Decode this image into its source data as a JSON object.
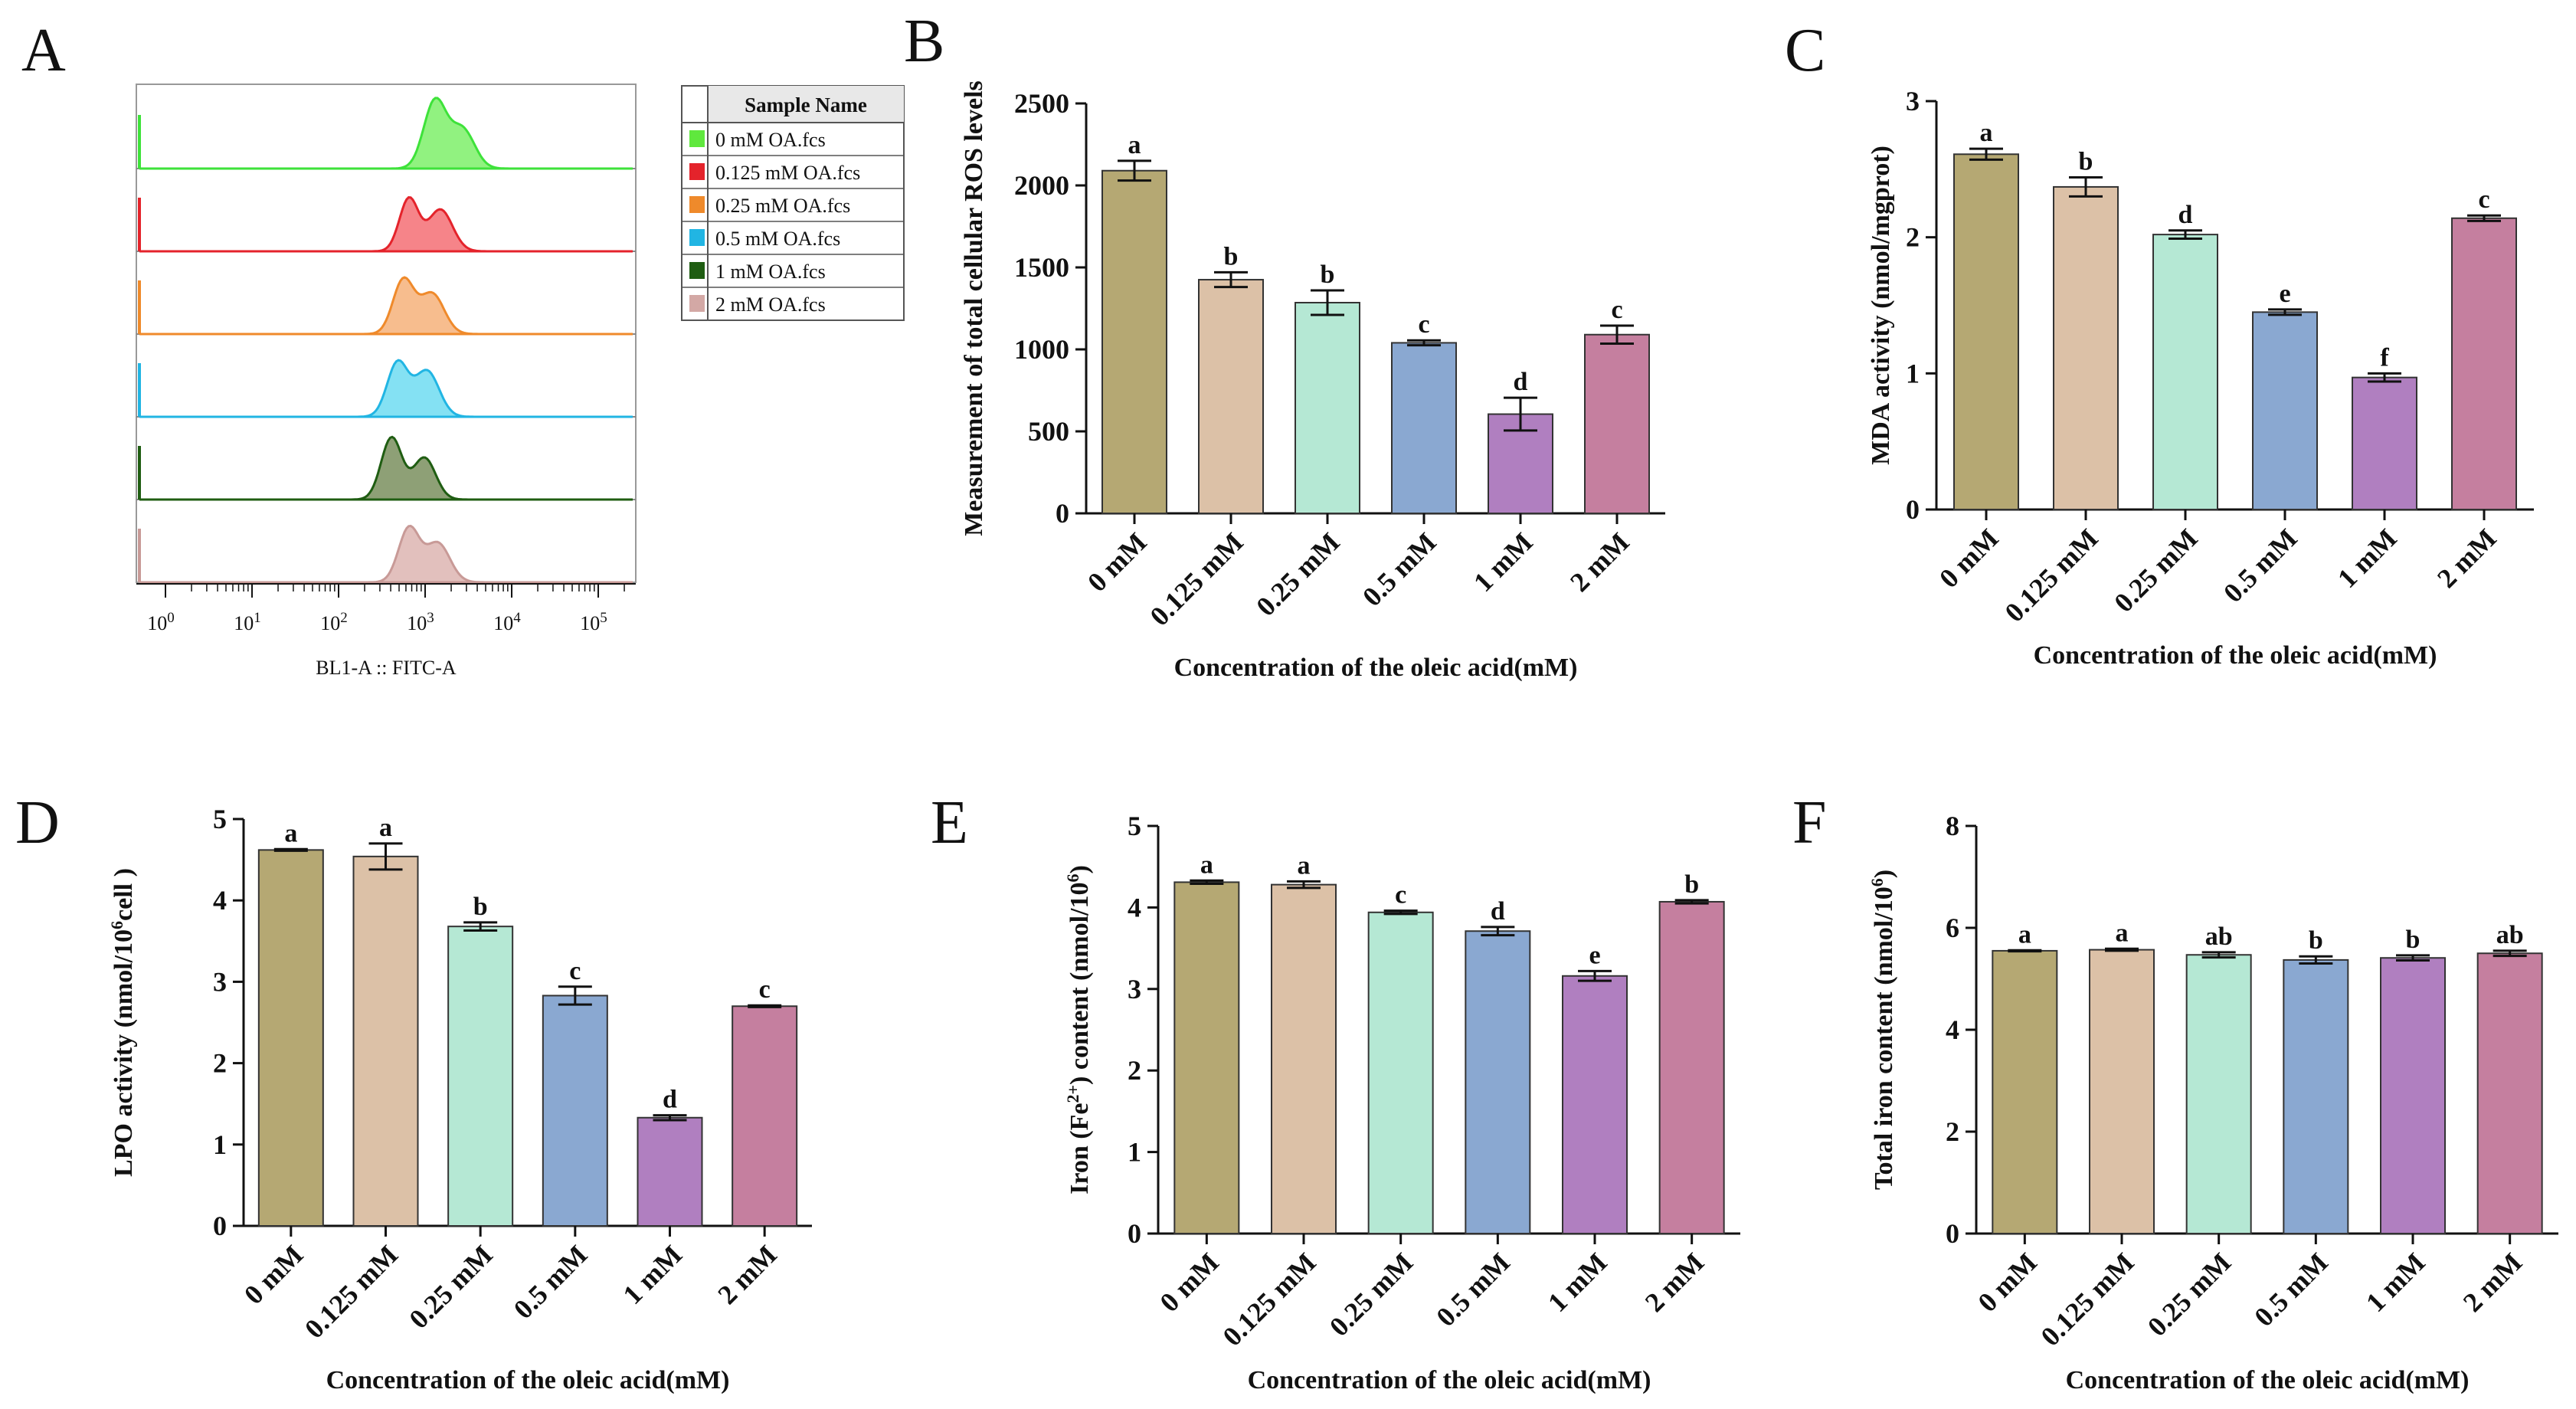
{
  "panels": {
    "A": "A",
    "B": "B",
    "C": "C",
    "D": "D",
    "E": "E",
    "F": "F"
  },
  "colors": {
    "bars": [
      "#b5a873",
      "#dcc1a7",
      "#b5e8d4",
      "#8aa8d1",
      "#b07fc0",
      "#c57f9f"
    ],
    "flow": [
      "#7ef06a",
      "#f46e74",
      "#f6b27a",
      "#6fdcf1",
      "#7a8f5e",
      "#ddb5b2"
    ],
    "flow_lines": [
      "#3ee23a",
      "#e4232b",
      "#ef8a2b",
      "#21b5e3",
      "#1f5d12",
      "#c89a97"
    ],
    "legend_swatch": [
      "#5fe83d",
      "#e4232b",
      "#ef8a2b",
      "#21b5e3",
      "#1f5d12",
      "#d3a8a5"
    ]
  },
  "chart_data": [
    {
      "panel": "A",
      "type": "histogram-overlay",
      "xlabel": "BL1-A :: FITC-A",
      "xscale": "log",
      "xlim": [
        0.5,
        250000
      ],
      "x_tick_labels": [
        {
          "base": "10",
          "exp": "0",
          "value": 1
        },
        {
          "base": "10",
          "exp": "1",
          "value": 10
        },
        {
          "base": "10",
          "exp": "2",
          "value": 100
        },
        {
          "base": "10",
          "exp": "3",
          "value": 1000
        },
        {
          "base": "10",
          "exp": "4",
          "value": 10000
        },
        {
          "base": "10",
          "exp": "5",
          "value": 100000
        }
      ],
      "legend_title": "Sample Name",
      "series": [
        {
          "name": "0 mM OA.fcs",
          "peaks": [
            {
              "x": 1300,
              "h": 1.0,
              "w": 0.13
            },
            {
              "x": 2700,
              "h": 0.58,
              "w": 0.14
            }
          ]
        },
        {
          "name": "0.125 mM OA.fcs",
          "peaks": [
            {
              "x": 650,
              "h": 0.78,
              "w": 0.11
            },
            {
              "x": 1500,
              "h": 0.62,
              "w": 0.14
            }
          ]
        },
        {
          "name": "0.25 mM OA.fcs",
          "peaks": [
            {
              "x": 560,
              "h": 0.8,
              "w": 0.12
            },
            {
              "x": 1200,
              "h": 0.6,
              "w": 0.14
            }
          ]
        },
        {
          "name": "0.5 mM OA.fcs",
          "peaks": [
            {
              "x": 480,
              "h": 0.8,
              "w": 0.12
            },
            {
              "x": 1050,
              "h": 0.68,
              "w": 0.14
            }
          ]
        },
        {
          "name": "1 mM OA.fcs",
          "peaks": [
            {
              "x": 410,
              "h": 0.92,
              "w": 0.12
            },
            {
              "x": 980,
              "h": 0.62,
              "w": 0.13
            }
          ]
        },
        {
          "name": "2 mM OA.fcs",
          "peaks": [
            {
              "x": 650,
              "h": 0.8,
              "w": 0.12
            },
            {
              "x": 1400,
              "h": 0.58,
              "w": 0.14
            }
          ]
        }
      ]
    },
    {
      "panel": "B",
      "type": "bar",
      "categories": [
        "0 mM",
        "0.125 mM",
        "0.25 mM",
        "0.5 mM",
        "1 mM",
        "2 mM"
      ],
      "values": [
        2090,
        1425,
        1285,
        1040,
        605,
        1090
      ],
      "errors": [
        60,
        45,
        75,
        15,
        100,
        55
      ],
      "letters": [
        "a",
        "b",
        "b",
        "c",
        "d",
        "c"
      ],
      "ylabel": "Measurement of total cellular ROS levels",
      "xlabel": "Concentration of the oleic acid(mM)",
      "ylim": [
        0,
        2500
      ],
      "yticks": [
        "0",
        "500",
        "1000",
        "1500",
        "2000",
        "2500"
      ]
    },
    {
      "panel": "C",
      "type": "bar",
      "categories": [
        "0 mM",
        "0.125 mM",
        "0.25 mM",
        "0.5 mM",
        "1 mM",
        "2 mM"
      ],
      "values": [
        2.61,
        2.37,
        2.02,
        1.45,
        0.97,
        2.14
      ],
      "errors": [
        0.04,
        0.07,
        0.03,
        0.02,
        0.03,
        0.02
      ],
      "letters": [
        "a",
        "b",
        "d",
        "e",
        "f",
        "c"
      ],
      "ylabel": "MDA activity (nmol/mgprot)",
      "xlabel": "Concentration of the oleic acid(mM)",
      "ylim": [
        0,
        3
      ],
      "yticks": [
        "0",
        "1",
        "2",
        "3"
      ]
    },
    {
      "panel": "D",
      "type": "bar",
      "categories": [
        "0 mM",
        "0.125 mM",
        "0.25 mM",
        "0.5 mM",
        "1 mM",
        "2 mM"
      ],
      "values": [
        4.62,
        4.54,
        3.68,
        2.83,
        1.33,
        2.7
      ],
      "errors": [
        0.01,
        0.16,
        0.05,
        0.11,
        0.03,
        0.01
      ],
      "letters": [
        "a",
        "a",
        "b",
        "c",
        "d",
        "c"
      ],
      "ylabel_main": "LPO activity (nmol/10",
      "ylabel_sup": "6",
      "ylabel_end": "cell )",
      "xlabel": "Concentration of the oleic acid(mM)",
      "ylim": [
        0,
        5
      ],
      "yticks": [
        "0",
        "1",
        "2",
        "3",
        "4",
        "5"
      ]
    },
    {
      "panel": "E",
      "type": "bar",
      "categories": [
        "0 mM",
        "0.125 mM",
        "0.25 mM",
        "0.5 mM",
        "1 mM",
        "2 mM"
      ],
      "values": [
        4.31,
        4.28,
        3.94,
        3.71,
        3.16,
        4.07
      ],
      "errors": [
        0.02,
        0.04,
        0.02,
        0.05,
        0.06,
        0.02
      ],
      "letters": [
        "a",
        "a",
        "c",
        "d",
        "e",
        "b"
      ],
      "ylabel_main": "Iron (Fe",
      "ylabel_sup": "2+",
      "ylabel_mid": ") content (nmol/10",
      "ylabel_sup2": "6",
      "ylabel_end": ")",
      "xlabel": "Concentration of the oleic acid(mM)",
      "ylim": [
        0,
        5
      ],
      "yticks": [
        "0",
        "1",
        "2",
        "3",
        "4",
        "5"
      ]
    },
    {
      "panel": "F",
      "type": "bar",
      "categories": [
        "0 mM",
        "0.125 mM",
        "0.25 mM",
        "0.5 mM",
        "1 mM",
        "2 mM"
      ],
      "values": [
        5.55,
        5.57,
        5.47,
        5.37,
        5.41,
        5.5
      ],
      "errors": [
        0.01,
        0.02,
        0.05,
        0.07,
        0.05,
        0.05
      ],
      "letters": [
        "a",
        "a",
        "ab",
        "b",
        "b",
        "ab"
      ],
      "ylabel_main": "Total iron content (nmol/10",
      "ylabel_sup": "6",
      "ylabel_end": ")",
      "xlabel": "Concentration of the oleic acid(mM)",
      "ylim": [
        0,
        8
      ],
      "yticks": [
        "0",
        "2",
        "4",
        "6",
        "8"
      ]
    }
  ]
}
